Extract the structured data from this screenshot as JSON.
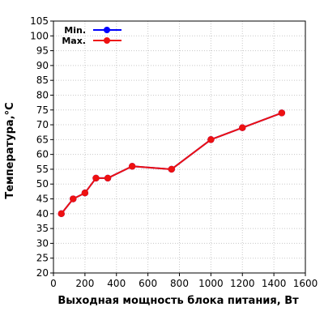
{
  "chart_data": {
    "type": "line",
    "xlabel": "Выходная мощность блока питания, Вт",
    "ylabel": "Температура,°C",
    "xlim": [
      0,
      1600
    ],
    "ylim": [
      20,
      105
    ],
    "x_ticks": [
      0,
      200,
      400,
      600,
      800,
      1000,
      1200,
      1400,
      1600
    ],
    "y_ticks": [
      20,
      25,
      30,
      35,
      40,
      45,
      50,
      55,
      60,
      65,
      70,
      75,
      80,
      85,
      90,
      95,
      100,
      105
    ],
    "grid": true,
    "legend_position": "top-left",
    "series": [
      {
        "name": "Min.",
        "color": "#0000ff",
        "x": [
          50,
          125,
          200,
          270,
          345,
          500,
          750,
          1000,
          1200,
          1450
        ],
        "y": [
          40,
          45,
          47,
          52,
          52,
          56,
          55,
          65,
          69,
          74
        ]
      },
      {
        "name": "Max.",
        "color": "#ee1111",
        "x": [
          50,
          125,
          200,
          270,
          345,
          500,
          750,
          1000,
          1200,
          1450
        ],
        "y": [
          40,
          45,
          47,
          52,
          52,
          56,
          55,
          65,
          69,
          74
        ]
      }
    ]
  }
}
